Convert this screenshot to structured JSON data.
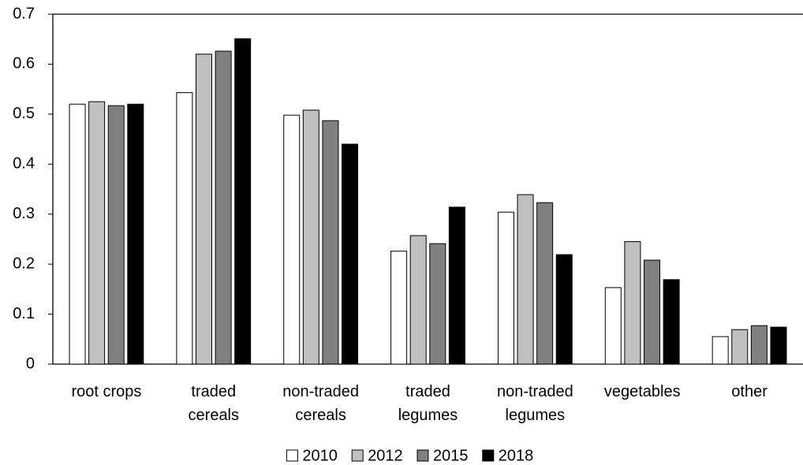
{
  "chart_data": {
    "type": "bar",
    "categories": [
      "root crops",
      "traded cereals",
      "non-traded cereals",
      "traded legumes",
      "non-traded legumes",
      "vegetables",
      "other"
    ],
    "series": [
      {
        "name": "2010",
        "color": "#ffffff",
        "values": [
          0.52,
          0.543,
          0.498,
          0.226,
          0.304,
          0.153,
          0.055
        ]
      },
      {
        "name": "2012",
        "color": "#c0c0c0",
        "values": [
          0.525,
          0.62,
          0.508,
          0.257,
          0.339,
          0.245,
          0.069
        ]
      },
      {
        "name": "2015",
        "color": "#808080",
        "values": [
          0.517,
          0.626,
          0.487,
          0.241,
          0.323,
          0.208,
          0.077
        ]
      },
      {
        "name": "2018",
        "color": "#000000",
        "values": [
          0.52,
          0.651,
          0.44,
          0.314,
          0.219,
          0.169,
          0.074
        ]
      }
    ],
    "ylim": [
      0,
      0.7
    ],
    "yticks": [
      0,
      0.1,
      0.2,
      0.3,
      0.4,
      0.5,
      0.6,
      0.7
    ],
    "legend": "bottom"
  }
}
